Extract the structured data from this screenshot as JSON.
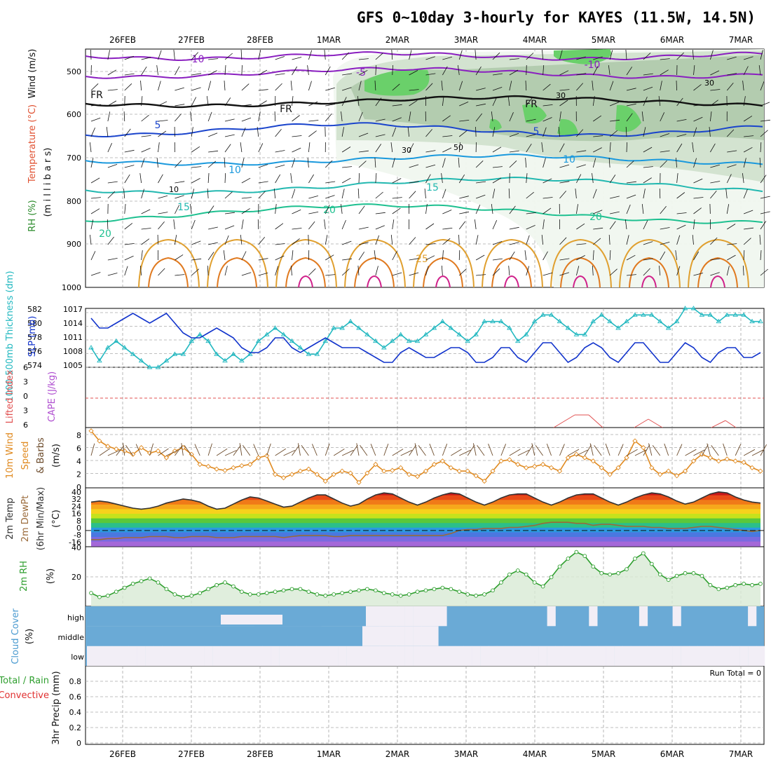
{
  "title": "GFS 0~10day 3-hourly for KAYES (11.5W, 14.5N)",
  "dates": [
    "26FEB",
    "27FEB",
    "28FEB",
    "1MAR",
    "2MAR",
    "3MAR",
    "4MAR",
    "5MAR",
    "6MAR",
    "7MAR"
  ],
  "colors": {
    "rh_shade": [
      "#f0f7ef",
      "#cfe0cc",
      "#a8c4a4",
      "#6ad06a"
    ],
    "slp": "#1133cc",
    "thickness": "#22b8c0",
    "wind": "#e08a20",
    "rh2m": "#2f9f2f",
    "cloud": "#6aaad6",
    "cloud_gap": "#f2eef6"
  },
  "panels": {
    "upper": {
      "labels": {
        "rh": "RH (%)",
        "temperature": "Temperature (°C)",
        "wind": "Wind (m/s)",
        "units": "(m i l l i b a r s)"
      },
      "levels": [
        "500",
        "600",
        "700",
        "800",
        "900",
        "1000"
      ],
      "contours": [
        {
          "label": "-10",
          "color": "#8a1fc0"
        },
        {
          "label": "-5",
          "color": "#8a1fc0"
        },
        {
          "label": "FR",
          "color": "#111111"
        },
        {
          "label": "5",
          "color": "#1a44cc"
        },
        {
          "label": "10",
          "color": "#1a99dd"
        },
        {
          "label": "15",
          "color": "#22b8b0"
        },
        {
          "label": "20",
          "color": "#1ec090"
        },
        {
          "label": "25",
          "color": "#e0a030"
        },
        {
          "label": "30",
          "color": "#e07a20"
        }
      ],
      "rh_labels": [
        "10",
        "30",
        "50",
        "70"
      ]
    },
    "slp": {
      "labels": {
        "thickness": "1000-500mb Thickness (dm)",
        "slp": "SLP (mb)"
      },
      "thickness_ticks": [
        "582",
        "580",
        "578",
        "576",
        "574"
      ],
      "slp_ticks": [
        "1017",
        "1014",
        "1011",
        "1008",
        "1005"
      ]
    },
    "stability": {
      "labels": {
        "li": "Lifted Index",
        "cape": "CAPE (J/kg)"
      },
      "ticks": [
        "6",
        "3",
        "0",
        "3",
        "6"
      ]
    },
    "wind10": {
      "labels": {
        "a": "10m Wind",
        "b": "Speed",
        "c": "& Barbs",
        "unit": "(m/s)"
      },
      "ticks": [
        "8",
        "6",
        "4",
        "2",
        "0"
      ]
    },
    "temp2m": {
      "labels": {
        "a": "2m Temp",
        "b": "2m DewPt",
        "c": "(6hr Min/Max)",
        "unit": "(°C)"
      },
      "ticks": [
        "40",
        "32",
        "24",
        "16",
        "8",
        "0",
        "-8",
        "-16"
      ]
    },
    "rh2m": {
      "labels": {
        "a": "2m RH",
        "unit": "(%)"
      },
      "ticks": [
        "40",
        "20"
      ]
    },
    "cloud": {
      "labels": {
        "a": "Cloud Cover",
        "unit": "(%)"
      },
      "layers": [
        "high",
        "middle",
        "low"
      ]
    },
    "precip": {
      "labels": {
        "a": "Total / Rain",
        "b": "Convective",
        "c": "3hr Precip (mm)"
      },
      "ticks": [
        "0.8",
        "0.6",
        "0.4",
        "0.2",
        "0"
      ],
      "run_total": "Run Total = 0"
    }
  },
  "chart_data": [
    {
      "type": "line",
      "title": "1000-500mb Thickness (dm)",
      "ylim": [
        573,
        582
      ],
      "y": [
        576,
        574,
        576,
        577,
        576,
        575,
        574,
        573,
        573,
        574,
        575,
        575,
        577,
        578,
        577,
        575,
        574,
        575,
        574,
        575,
        577,
        578,
        579,
        578,
        577,
        576,
        575,
        575,
        577,
        579,
        579,
        580,
        579,
        578,
        577,
        576,
        577,
        578,
        577,
        577,
        578,
        579,
        580,
        579,
        578,
        577,
        578,
        580,
        580,
        580,
        579,
        577,
        578,
        580,
        581,
        581,
        580,
        579,
        578,
        578,
        580,
        581,
        580,
        579,
        580,
        581,
        581,
        581,
        580,
        579,
        580,
        582,
        582,
        581,
        581,
        580,
        581,
        581,
        581,
        580,
        580
      ]
    },
    {
      "type": "line",
      "title": "SLP (mb)",
      "ylim": [
        1005,
        1017
      ],
      "y": [
        1015,
        1013,
        1013,
        1014,
        1015,
        1016,
        1015,
        1014,
        1015,
        1016,
        1014,
        1012,
        1011,
        1011,
        1012,
        1013,
        1012,
        1011,
        1009,
        1008,
        1008,
        1009,
        1011,
        1011,
        1009,
        1008,
        1009,
        1010,
        1011,
        1010,
        1009,
        1009,
        1009,
        1008,
        1007,
        1006,
        1006,
        1008,
        1009,
        1008,
        1007,
        1007,
        1008,
        1009,
        1009,
        1008,
        1006,
        1006,
        1007,
        1009,
        1009,
        1007,
        1006,
        1008,
        1010,
        1010,
        1008,
        1006,
        1007,
        1009,
        1010,
        1009,
        1007,
        1006,
        1008,
        1010,
        1010,
        1008,
        1006,
        1006,
        1008,
        1010,
        1009,
        1007,
        1006,
        1008,
        1009,
        1009,
        1007,
        1007,
        1008
      ]
    },
    {
      "type": "line",
      "title": "10m Wind Speed",
      "ylim": [
        0,
        9
      ],
      "y": [
        8.5,
        7,
        6.2,
        5.8,
        5.5,
        5,
        6,
        5.2,
        5.5,
        4.5,
        5.5,
        6,
        5,
        3.5,
        3.2,
        2.8,
        2.6,
        3,
        3.3,
        3.5,
        4.5,
        4.8,
        2,
        1.5,
        2,
        2.5,
        2.8,
        2,
        1,
        2,
        2.5,
        2.2,
        0.8,
        2.2,
        3.5,
        2.5,
        2.6,
        3,
        2,
        1.7,
        2.5,
        3.5,
        4,
        3,
        2.5,
        2.5,
        1.8,
        1,
        2.5,
        4,
        4.2,
        3.5,
        3,
        3.2,
        3.5,
        3,
        2.5,
        4.5,
        5,
        4.5,
        4,
        3,
        2,
        3,
        4.5,
        7,
        6,
        3,
        2,
        2.5,
        1.8,
        2.5,
        4,
        5,
        4.5,
        4,
        4.3,
        4,
        3.8,
        3,
        2.5
      ]
    },
    {
      "type": "area",
      "title": "2m Temp",
      "ylim": [
        -16,
        42
      ],
      "y": [
        28,
        29,
        28,
        26,
        24,
        22,
        21,
        22,
        24,
        27,
        29,
        31,
        30,
        28,
        24,
        21,
        22,
        26,
        30,
        33,
        32,
        29,
        26,
        23,
        24,
        28,
        32,
        35,
        35,
        31,
        27,
        24,
        26,
        31,
        35,
        37,
        36,
        32,
        28,
        25,
        28,
        32,
        35,
        37,
        36,
        32,
        28,
        25,
        28,
        32,
        35,
        36,
        36,
        32,
        28,
        25,
        28,
        32,
        35,
        36,
        36,
        32,
        28,
        25,
        28,
        32,
        35,
        37,
        36,
        33,
        29,
        26,
        28,
        32,
        36,
        38,
        37,
        33,
        30,
        28,
        27
      ]
    },
    {
      "type": "line",
      "title": "2m DewPt",
      "ylim": [
        -16,
        42
      ],
      "y": [
        -9,
        -9,
        -8,
        -8,
        -7,
        -7,
        -7,
        -6,
        -6,
        -6,
        -7,
        -7,
        -6,
        -6,
        -6,
        -7,
        -7,
        -7,
        -6,
        -6,
        -6,
        -6,
        -6,
        -7,
        -6,
        -5,
        -5,
        -5,
        -5,
        -6,
        -6,
        -5,
        -5,
        -5,
        -5,
        -5,
        -5,
        -5,
        -5,
        -5,
        -5,
        -5,
        -5,
        -3,
        0,
        1,
        1,
        2,
        2,
        2,
        3,
        3,
        4,
        5,
        7,
        8,
        8,
        8,
        7,
        7,
        5,
        6,
        6,
        5,
        4,
        4,
        4,
        3,
        3,
        2,
        2,
        2,
        3,
        4,
        4,
        3,
        2,
        1,
        0,
        -1,
        0
      ]
    },
    {
      "type": "area",
      "title": "2m RH",
      "ylim": [
        0,
        45
      ],
      "y": [
        10,
        7,
        8,
        11,
        14,
        17,
        19,
        21,
        18,
        13,
        9,
        7,
        8,
        10,
        13,
        16,
        18,
        15,
        11,
        9,
        9,
        10,
        11,
        12,
        13,
        13,
        11,
        9,
        8,
        9,
        10,
        11,
        12,
        13,
        12,
        10,
        9,
        8,
        9,
        11,
        12,
        13,
        14,
        13,
        11,
        9,
        8,
        9,
        12,
        18,
        24,
        27,
        24,
        18,
        15,
        22,
        30,
        36,
        41,
        38,
        30,
        25,
        24,
        25,
        28,
        36,
        40,
        32,
        24,
        20,
        23,
        25,
        25,
        23,
        16,
        13,
        14,
        16,
        17,
        16,
        17
      ]
    },
    {
      "type": "heatmap",
      "title": "Cloud Cover",
      "categories": [
        "high",
        "middle",
        "low"
      ],
      "high": [
        0,
        0,
        0,
        0,
        0,
        0,
        0,
        0,
        0,
        0,
        0,
        0,
        0,
        0,
        0,
        0,
        0,
        0,
        0,
        0,
        100,
        100,
        100,
        100,
        100,
        100,
        100,
        100,
        0,
        0,
        0,
        0,
        0,
        0,
        0,
        0,
        0,
        0,
        0,
        0,
        0,
        0,
        0,
        100,
        100,
        100,
        50,
        100,
        100,
        100,
        100,
        100,
        100,
        100,
        100,
        0,
        50,
        100,
        100,
        100,
        0,
        100,
        50,
        100,
        100,
        100,
        0,
        100,
        100,
        100,
        0,
        50,
        100,
        100,
        100,
        100,
        50,
        100,
        100,
        0,
        100
      ],
      "middle": [
        0,
        0,
        0,
        0,
        0,
        0,
        0,
        0,
        0,
        0,
        0,
        0,
        0,
        0,
        0,
        0,
        0,
        0,
        0,
        0,
        0,
        0,
        0,
        0,
        0,
        0,
        0,
        0,
        0,
        0,
        0,
        0,
        0,
        0,
        0,
        0,
        0,
        0,
        0,
        0,
        0,
        0,
        50,
        100,
        100,
        50,
        100,
        100,
        50,
        100,
        50,
        100,
        100,
        100,
        50,
        50,
        100,
        100,
        50,
        100,
        100,
        100,
        100,
        50,
        100,
        50,
        100,
        100,
        100,
        50,
        100,
        100,
        100,
        100,
        50,
        100,
        100,
        100,
        50,
        100,
        50
      ],
      "low": [
        0,
        0,
        0,
        0,
        0,
        0,
        0,
        0,
        0,
        0,
        0,
        0,
        0,
        0,
        0,
        0,
        0,
        0,
        0,
        0,
        0,
        0,
        0,
        0,
        0,
        0,
        0,
        0,
        0,
        0,
        0,
        0,
        0,
        0,
        0,
        0,
        0,
        0,
        0,
        0,
        0,
        0,
        0,
        0,
        0,
        0,
        0,
        0,
        0,
        0,
        0,
        0,
        0,
        0,
        0,
        0,
        0,
        0,
        0,
        0,
        0,
        0,
        0,
        0,
        0,
        0,
        0,
        0,
        0,
        0,
        0,
        0,
        0,
        0,
        0,
        0,
        0,
        0,
        0,
        0,
        0
      ]
    },
    {
      "type": "bar",
      "title": "3hr Precip (mm)",
      "ylim": [
        0,
        1
      ],
      "y": [
        0,
        0,
        0,
        0,
        0,
        0,
        0,
        0,
        0,
        0,
        0,
        0,
        0,
        0,
        0,
        0,
        0,
        0,
        0,
        0,
        0,
        0,
        0,
        0,
        0,
        0,
        0,
        0,
        0,
        0,
        0,
        0,
        0,
        0,
        0,
        0,
        0,
        0,
        0,
        0,
        0,
        0,
        0,
        0,
        0,
        0,
        0,
        0,
        0,
        0,
        0,
        0,
        0,
        0,
        0,
        0,
        0,
        0,
        0,
        0,
        0,
        0,
        0,
        0,
        0,
        0,
        0,
        0,
        0,
        0,
        0,
        0,
        0,
        0,
        0,
        0,
        0,
        0,
        0,
        0,
        0
      ]
    }
  ]
}
